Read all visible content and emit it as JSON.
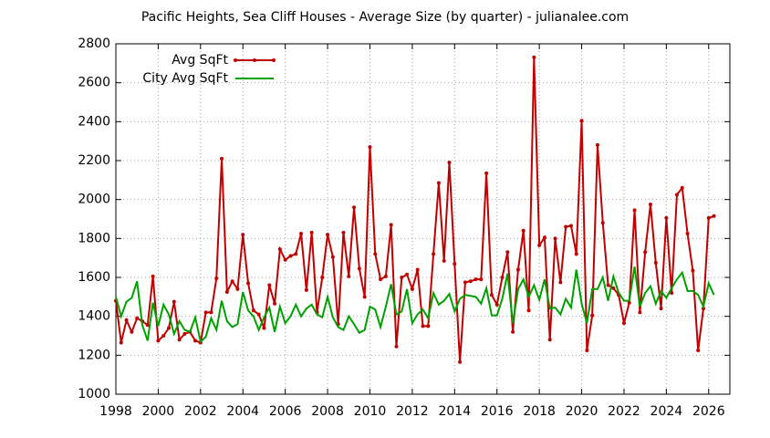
{
  "chart_data": {
    "type": "line",
    "title": "Pacific Heights, Sea Cliff Houses - Average Size (by quarter) - julianalee.com",
    "x": [
      1998,
      1998.25,
      1998.5,
      1998.75,
      1999,
      1999.25,
      1999.5,
      1999.75,
      2000,
      2000.25,
      2000.5,
      2000.75,
      2001,
      2001.25,
      2001.5,
      2001.75,
      2002,
      2002.25,
      2002.5,
      2002.75,
      2003,
      2003.25,
      2003.5,
      2003.75,
      2004,
      2004.25,
      2004.5,
      2004.75,
      2005,
      2005.25,
      2005.5,
      2005.75,
      2006,
      2006.25,
      2006.5,
      2006.75,
      2007,
      2007.25,
      2007.5,
      2007.75,
      2008,
      2008.25,
      2008.5,
      2008.75,
      2009,
      2009.25,
      2009.5,
      2009.75,
      2010,
      2010.25,
      2010.5,
      2010.75,
      2011,
      2011.25,
      2011.5,
      2011.75,
      2012,
      2012.25,
      2012.5,
      2012.75,
      2013,
      2013.25,
      2013.5,
      2013.75,
      2014,
      2014.25,
      2014.5,
      2014.75,
      2015,
      2015.25,
      2015.5,
      2015.75,
      2016,
      2016.25,
      2016.5,
      2016.75,
      2017,
      2017.25,
      2017.5,
      2017.75,
      2018,
      2018.25,
      2018.5,
      2018.75,
      2019,
      2019.25,
      2019.5,
      2019.75,
      2020,
      2020.25,
      2020.5,
      2020.75,
      2021,
      2021.25,
      2021.5,
      2021.75,
      2022,
      2022.25,
      2022.5,
      2022.75,
      2023,
      2023.25,
      2023.5,
      2023.75,
      2024,
      2024.25,
      2024.5,
      2024.75,
      2025,
      2025.25,
      2025.5,
      2025.75,
      2026,
      2026.25
    ],
    "series": [
      {
        "name": "Avg SqFt",
        "color": "#c00000",
        "markers": true,
        "values": [
          1480,
          1265,
          1380,
          1320,
          1390,
          1375,
          1355,
          1605,
          1275,
          1300,
          1340,
          1475,
          1280,
          1310,
          1320,
          1275,
          1265,
          1420,
          1420,
          1595,
          2210,
          1525,
          1580,
          1540,
          1820,
          1570,
          1430,
          1410,
          1340,
          1560,
          1465,
          1745,
          1690,
          1710,
          1720,
          1825,
          1535,
          1830,
          1420,
          1600,
          1820,
          1705,
          1360,
          1830,
          1605,
          1960,
          1645,
          1500,
          2270,
          1720,
          1590,
          1605,
          1870,
          1245,
          1600,
          1615,
          1540,
          1640,
          1350,
          1350,
          1720,
          2085,
          1685,
          2190,
          1670,
          1165,
          1575,
          1580,
          1590,
          1590,
          2135,
          1510,
          1460,
          1600,
          1730,
          1320,
          1640,
          1840,
          1430,
          2730,
          1765,
          1805,
          1280,
          1800,
          1575,
          1860,
          1865,
          1720,
          2405,
          1225,
          1405,
          2280,
          1880,
          1560,
          1545,
          1510,
          1365,
          1470,
          1945,
          1420,
          1730,
          1975,
          1675,
          1440,
          1905,
          1520,
          2025,
          2060,
          1825,
          1635,
          1225,
          1440,
          1905,
          1915
        ]
      },
      {
        "name": "City Avg SqFt",
        "color": "#00a000",
        "markers": false,
        "values": [
          1500,
          1400,
          1475,
          1495,
          1580,
          1355,
          1275,
          1470,
          1350,
          1460,
          1410,
          1310,
          1375,
          1330,
          1320,
          1395,
          1270,
          1295,
          1390,
          1330,
          1480,
          1375,
          1345,
          1360,
          1525,
          1430,
          1400,
          1330,
          1395,
          1445,
          1320,
          1450,
          1365,
          1400,
          1460,
          1400,
          1440,
          1460,
          1410,
          1395,
          1500,
          1395,
          1345,
          1330,
          1400,
          1360,
          1315,
          1330,
          1450,
          1435,
          1345,
          1450,
          1565,
          1410,
          1425,
          1540,
          1365,
          1410,
          1435,
          1390,
          1520,
          1460,
          1480,
          1515,
          1425,
          1490,
          1510,
          1505,
          1500,
          1465,
          1545,
          1405,
          1405,
          1490,
          1620,
          1365,
          1540,
          1590,
          1500,
          1560,
          1485,
          1590,
          1440,
          1445,
          1410,
          1490,
          1445,
          1640,
          1465,
          1365,
          1540,
          1540,
          1600,
          1480,
          1605,
          1520,
          1480,
          1480,
          1655,
          1450,
          1520,
          1555,
          1465,
          1530,
          1495,
          1545,
          1590,
          1625,
          1530,
          1530,
          1510,
          1450,
          1570,
          1510
        ]
      }
    ],
    "xlim": [
      1998,
      2027
    ],
    "xticks": [
      1998,
      2000,
      2002,
      2004,
      2006,
      2008,
      2010,
      2012,
      2014,
      2016,
      2018,
      2020,
      2022,
      2024,
      2026
    ],
    "ylim": [
      1000,
      2800
    ],
    "yticks": [
      1000,
      1200,
      1400,
      1600,
      1800,
      2000,
      2200,
      2400,
      2600,
      2800
    ],
    "grid": true,
    "legend": "top-left"
  }
}
